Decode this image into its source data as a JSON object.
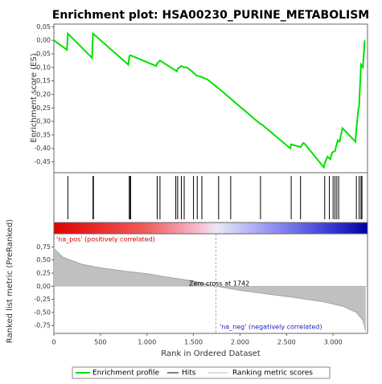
{
  "chart_data": {
    "type": "gsea",
    "title": "Enrichment plot: HSA00230_PURINE_METABOLISM",
    "x_label": "Rank in Ordered Dataset",
    "xlim": [
      0,
      3370
    ],
    "xticks": [
      0,
      500,
      {
        "value": 1000,
        "label": "1.000"
      },
      {
        "value": 1500,
        "label": "1.500"
      },
      {
        "value": 2000,
        "label": "2.000"
      },
      {
        "value": 2500,
        "label": "2.500"
      },
      {
        "value": 3000,
        "label": "3.000"
      }
    ],
    "es_label": "Enrichment score (ES)",
    "ylim": [
      -0.49,
      0.06
    ],
    "yticks": [
      {
        "value": 0.05,
        "label": "0,05"
      },
      {
        "value": 0,
        "label": "0,00"
      },
      {
        "value": -0.05,
        "label": "-0,05"
      },
      {
        "value": -0.1,
        "label": "-0,10"
      },
      {
        "value": -0.15,
        "label": "-0,15"
      },
      {
        "value": -0.2,
        "label": "-0,20"
      },
      {
        "value": -0.25,
        "label": "-0,25"
      },
      {
        "value": -0.3,
        "label": "-0,30"
      },
      {
        "value": -0.35,
        "label": "-0,35"
      },
      {
        "value": -0.4,
        "label": "-0,40"
      },
      {
        "value": -0.45,
        "label": "-0,45"
      }
    ],
    "metric_label": "Ranked list metric (PreRanked)",
    "y2lim": [
      -0.9,
      1.0
    ],
    "y2ticks": [
      {
        "value": 0.75,
        "label": "0,75"
      },
      {
        "value": 0.5,
        "label": "0,50"
      },
      {
        "value": 0.25,
        "label": "0,25"
      },
      {
        "value": 0,
        "label": "0,00"
      },
      {
        "value": -0.25,
        "label": "-0,25"
      },
      {
        "value": -0.5,
        "label": "-0,50"
      },
      {
        "value": -0.75,
        "label": "-0,75"
      }
    ],
    "series": [
      {
        "name": "Enrichment profile",
        "color": "#00e000",
        "x": [
          0,
          140,
          150,
          410,
          420,
          800,
          810,
          820,
          1100,
          1110,
          1140,
          1300,
          1320,
          1330,
          1370,
          1400,
          1430,
          1500,
          1530,
          1580,
          1650,
          1760,
          2220,
          2230,
          2540,
          2550,
          2600,
          2650,
          2680,
          2700,
          2900,
          2910,
          2940,
          2970,
          2990,
          3020,
          3050,
          3070,
          3100,
          3240,
          3250,
          3270,
          3280,
          3290,
          3300,
          3320,
          3340
        ],
        "values": [
          0,
          -0.035,
          0.025,
          -0.065,
          0.025,
          -0.09,
          -0.06,
          -0.055,
          -0.095,
          -0.085,
          -0.075,
          -0.11,
          -0.115,
          -0.105,
          -0.095,
          -0.1,
          -0.1,
          -0.12,
          -0.13,
          -0.135,
          -0.145,
          -0.175,
          -0.31,
          -0.31,
          -0.4,
          -0.385,
          -0.39,
          -0.395,
          -0.38,
          -0.385,
          -0.47,
          -0.455,
          -0.43,
          -0.44,
          -0.415,
          -0.41,
          -0.37,
          -0.375,
          -0.325,
          -0.375,
          -0.33,
          -0.26,
          -0.24,
          -0.165,
          -0.09,
          -0.1,
          0
        ]
      },
      {
        "name": "Hits",
        "color": "#000000",
        "x": [
          150,
          420,
          425,
          810,
          820,
          825,
          1110,
          1140,
          1310,
          1330,
          1370,
          1400,
          1500,
          1540,
          1590,
          1770,
          1900,
          2220,
          2550,
          2650,
          2910,
          2960,
          3000,
          3020,
          3040,
          3060,
          3250,
          3280,
          3300,
          3310
        ]
      },
      {
        "name": "Ranking metric scores",
        "color": "#c0c0c0",
        "axis": "y2",
        "x": [
          0,
          100,
          300,
          500,
          800,
          1000,
          1200,
          1500,
          1742,
          2000,
          2300,
          2600,
          2900,
          3100,
          3250,
          3320,
          3350
        ],
        "values": [
          0.72,
          0.55,
          0.42,
          0.35,
          0.28,
          0.24,
          0.18,
          0.1,
          0,
          -0.08,
          -0.15,
          -0.22,
          -0.3,
          -0.38,
          -0.5,
          -0.65,
          -0.85
        ]
      }
    ],
    "zero_cross": 1742,
    "annotations": [
      "'na_pos' (positively correlated)",
      "Zero cross at 1742",
      "'na_neg' (negatively correlated)"
    ]
  }
}
